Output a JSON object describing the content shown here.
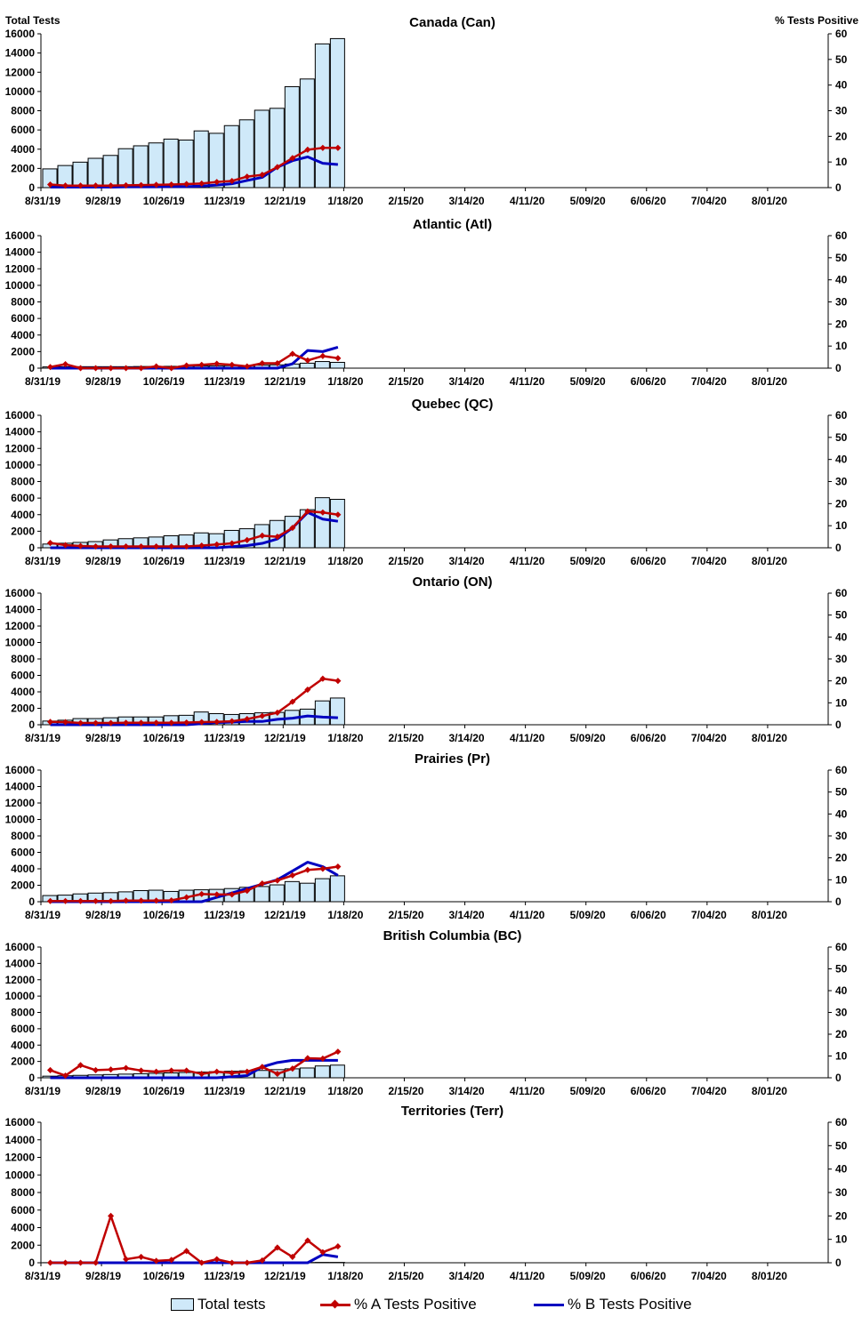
{
  "x_tick_labels": [
    "8/31/19",
    "9/28/19",
    "10/26/19",
    "11/23/19",
    "12/21/19",
    "1/18/20",
    "2/15/20",
    "3/14/20",
    "4/11/20",
    "5/09/20",
    "6/06/20",
    "7/04/20",
    "8/01/20"
  ],
  "left_axis_title": "Total Tests",
  "right_axis_title": "% Tests Positive",
  "legend": {
    "total": "Total tests",
    "a": "% A Tests Positive",
    "b": "% B Tests Positive"
  },
  "colors": {
    "bar_fill": "#cfe9f9",
    "bar_stroke": "#000000",
    "a_line": "#c00000",
    "b_line": "#0000c0"
  },
  "chart_data": [
    {
      "type": "bar+line",
      "title": "Canada (Can)",
      "x_weeks_labeled": [
        "8/31/19",
        "9/28/19",
        "10/26/19",
        "11/23/19",
        "12/21/19",
        "1/18/20",
        "2/15/20",
        "3/14/20",
        "4/11/20",
        "5/09/20",
        "6/06/20",
        "7/04/20",
        "8/01/20"
      ],
      "y_left": [
        0,
        16000
      ],
      "y_right": [
        0,
        60
      ],
      "total_tests": [
        1950,
        2300,
        2650,
        3050,
        3350,
        4050,
        4350,
        4650,
        5050,
        4950,
        5900,
        5650,
        6450,
        7050,
        8050,
        8250,
        10500,
        11300,
        14950,
        15500
      ],
      "pct_a": [
        1.2,
        0.8,
        0.8,
        0.8,
        0.8,
        0.9,
        1.0,
        1.1,
        1.2,
        1.4,
        1.6,
        2.2,
        2.6,
        4.3,
        5.0,
        8.0,
        11.5,
        14.8,
        15.5,
        15.5
      ],
      "pct_b": [
        0.2,
        0.2,
        0.2,
        0.2,
        0.2,
        0.3,
        0.3,
        0.3,
        0.4,
        0.4,
        0.6,
        1.0,
        1.5,
        2.8,
        4.0,
        8.0,
        10.5,
        12.0,
        9.5,
        9.0
      ]
    },
    {
      "type": "bar+line",
      "title": "Atlantic (Atl)",
      "y_left": [
        0,
        16000
      ],
      "y_right": [
        0,
        60
      ],
      "total_tests": [
        150,
        170,
        180,
        180,
        180,
        180,
        200,
        200,
        220,
        250,
        260,
        280,
        300,
        320,
        360,
        400,
        500,
        600,
        800,
        700
      ],
      "pct_a": [
        0.5,
        1.8,
        0.0,
        0.0,
        0.0,
        0.0,
        0.0,
        0.8,
        0.0,
        1.2,
        1.5,
        2.0,
        1.5,
        0.8,
        2.2,
        2.2,
        6.5,
        3.5,
        5.5,
        4.5
      ],
      "pct_b": [
        0.0,
        0.0,
        0.0,
        0.0,
        0.0,
        0.0,
        0.0,
        0.0,
        0.0,
        0.0,
        0.0,
        0.0,
        0.0,
        0.0,
        0.0,
        0.0,
        2.0,
        8.0,
        7.5,
        9.5
      ]
    },
    {
      "type": "bar+line",
      "title": "Quebec (QC)",
      "y_left": [
        0,
        16000
      ],
      "y_right": [
        0,
        60
      ],
      "total_tests": [
        450,
        550,
        650,
        750,
        950,
        1100,
        1200,
        1300,
        1450,
        1550,
        1800,
        1700,
        2100,
        2300,
        2800,
        3300,
        3800,
        4600,
        6050,
        5850
      ],
      "pct_a": [
        2.2,
        1.2,
        0.8,
        0.6,
        0.6,
        0.6,
        0.6,
        0.6,
        0.6,
        0.6,
        1.0,
        1.5,
        2.0,
        3.5,
        5.5,
        5.0,
        9.0,
        16.5,
        16.0,
        15.0
      ],
      "pct_b": [
        0.0,
        0.0,
        0.0,
        0.0,
        0.0,
        0.0,
        0.0,
        0.0,
        0.0,
        0.0,
        0.0,
        0.0,
        0.5,
        1.0,
        2.0,
        4.0,
        9.0,
        16.0,
        13.0,
        12.0
      ]
    },
    {
      "type": "bar+line",
      "title": "Ontario (ON)",
      "y_left": [
        0,
        16000
      ],
      "y_right": [
        0,
        60
      ],
      "total_tests": [
        450,
        550,
        750,
        750,
        850,
        950,
        950,
        950,
        1100,
        1150,
        1550,
        1350,
        1250,
        1350,
        1450,
        1500,
        1750,
        1900,
        2900,
        3250
      ],
      "pct_a": [
        1.3,
        1.2,
        0.8,
        0.8,
        0.8,
        0.9,
        0.9,
        0.9,
        0.9,
        1.0,
        1.2,
        1.3,
        1.6,
        2.6,
        4.0,
        5.5,
        10.5,
        16.0,
        21.0,
        20.0
      ],
      "pct_b": [
        0.0,
        0.0,
        0.0,
        0.0,
        0.0,
        0.0,
        0.0,
        0.0,
        0.0,
        0.0,
        0.5,
        1.0,
        1.2,
        1.5,
        1.5,
        2.5,
        3.0,
        4.0,
        3.5,
        3.2
      ]
    },
    {
      "type": "bar+line",
      "title": "Prairies (Pr)",
      "y_left": [
        0,
        16000
      ],
      "y_right": [
        0,
        60
      ],
      "total_tests": [
        750,
        800,
        950,
        1050,
        1100,
        1200,
        1350,
        1400,
        1250,
        1400,
        1450,
        1500,
        1600,
        1750,
        1850,
        2050,
        2450,
        2250,
        2800,
        3150
      ],
      "pct_a": [
        0.3,
        0.3,
        0.3,
        0.3,
        0.3,
        0.5,
        0.5,
        0.5,
        0.6,
        2.0,
        3.5,
        3.3,
        3.3,
        5.0,
        8.3,
        9.7,
        12.0,
        14.5,
        15.0,
        16.0
      ],
      "pct_b": [
        0.0,
        0.0,
        0.0,
        0.0,
        0.0,
        0.0,
        0.0,
        0.0,
        0.0,
        0.0,
        0.0,
        2.0,
        4.0,
        6.0,
        8.0,
        10.0,
        14.0,
        18.0,
        16.0,
        12.0
      ]
    },
    {
      "type": "bar+line",
      "title": "British Columbia (BC)",
      "y_left": [
        0,
        16000
      ],
      "y_right": [
        0,
        60
      ],
      "total_tests": [
        200,
        250,
        300,
        350,
        400,
        450,
        500,
        550,
        600,
        650,
        700,
        750,
        800,
        850,
        900,
        1000,
        1100,
        1200,
        1450,
        1550
      ],
      "pct_a": [
        3.5,
        1.0,
        5.8,
        3.5,
        3.8,
        4.5,
        3.3,
        2.8,
        3.3,
        3.3,
        1.8,
        2.8,
        2.2,
        2.8,
        5.0,
        1.8,
        4.2,
        9.0,
        8.8,
        12.0
      ],
      "pct_b": [
        0.0,
        0.0,
        0.0,
        0.0,
        0.0,
        0.0,
        0.0,
        0.0,
        0.0,
        0.0,
        0.0,
        0.0,
        0.5,
        1.0,
        5.0,
        7.0,
        8.0,
        8.0,
        8.0,
        8.0
      ],
      "pct_a_note": ""
    },
    {
      "type": "bar+line",
      "title": "Territories (Terr)",
      "y_left": [
        0,
        16000
      ],
      "y_right": [
        0,
        60
      ],
      "total_tests": [
        10,
        10,
        10,
        10,
        15,
        15,
        15,
        20,
        20,
        20,
        20,
        25,
        25,
        25,
        25,
        30,
        30,
        30,
        40,
        40
      ],
      "pct_a": [
        0.0,
        0.0,
        0.0,
        0.0,
        20.0,
        1.5,
        2.5,
        0.8,
        1.2,
        5.0,
        0.0,
        1.5,
        0.0,
        0.0,
        1.0,
        6.5,
        2.5,
        9.5,
        4.5,
        7.0
      ],
      "pct_b": [
        0.0,
        0.0,
        0.0,
        0.0,
        0.0,
        0.0,
        0.0,
        0.0,
        0.0,
        0.0,
        0.0,
        0.0,
        0.0,
        0.0,
        0.0,
        0.0,
        0.0,
        0.0,
        3.5,
        2.5
      ]
    }
  ]
}
